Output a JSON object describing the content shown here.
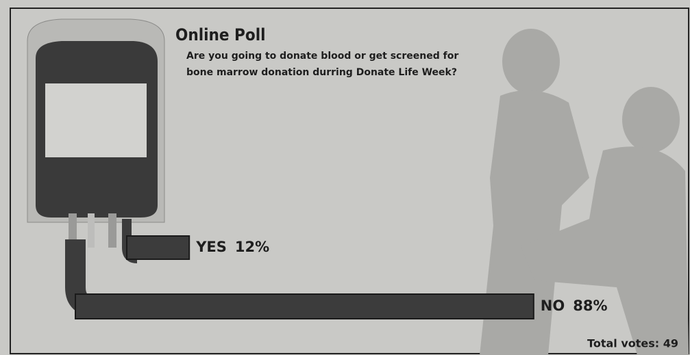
{
  "chart_data": {
    "type": "bar",
    "title": "Online Poll",
    "subtitle": [
      "Are you going to donate blood or get screened for",
      "bone marrow donation durring Donate Life Week?"
    ],
    "categories": [
      "YES",
      "NO"
    ],
    "values": [
      12,
      88
    ],
    "value_labels": [
      "12%",
      "88%"
    ],
    "color": "#3c3c3c",
    "annotation": "Total votes: 49"
  }
}
